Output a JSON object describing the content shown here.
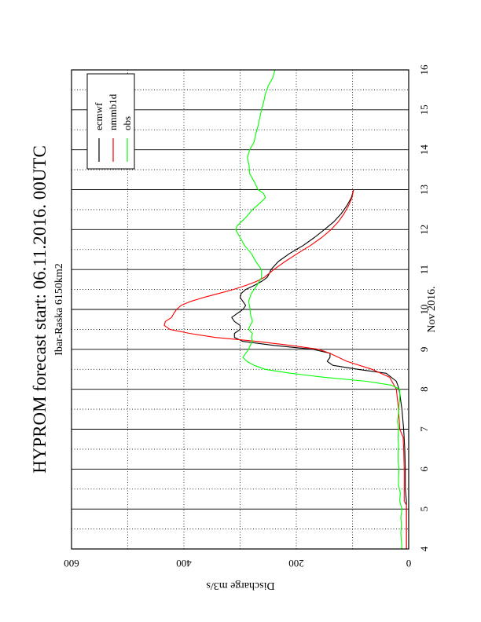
{
  "chart_data": {
    "type": "line",
    "title": "HYPROM forecast start: 06.11.2016. 00UTC",
    "subtitle": "Ibar-Raska 6150km2",
    "xlabel": "Nov 2016.",
    "ylabel": "Discharge m3/s",
    "xlim": [
      4,
      16
    ],
    "ylim": [
      0,
      600
    ],
    "x_ticks": [
      "4",
      "5",
      "6",
      "7",
      "8",
      "9",
      "10",
      "11",
      "12",
      "13",
      "14",
      "15",
      "16"
    ],
    "y_ticks": [
      "0",
      "200",
      "400",
      "600"
    ],
    "grid": true,
    "legend_position": "top-left (rotated figure)",
    "series": [
      {
        "name": "ecmwf",
        "color": "#000000",
        "points": [
          [
            4,
            4
          ],
          [
            5,
            4
          ],
          [
            5.2,
            4
          ],
          [
            5.5,
            6
          ],
          [
            6,
            6
          ],
          [
            6.5,
            7
          ],
          [
            7,
            9
          ],
          [
            7.5,
            12
          ],
          [
            8,
            17
          ],
          [
            8.2,
            22
          ],
          [
            8.4,
            40
          ],
          [
            8.5,
            90
          ],
          [
            8.6,
            135
          ],
          [
            8.7,
            145
          ],
          [
            8.8,
            140
          ],
          [
            8.9,
            140
          ],
          [
            9,
            170
          ],
          [
            9.1,
            240
          ],
          [
            9.2,
            295
          ],
          [
            9.3,
            310
          ],
          [
            9.4,
            310
          ],
          [
            9.5,
            300
          ],
          [
            9.6,
            300
          ],
          [
            9.7,
            310
          ],
          [
            9.8,
            315
          ],
          [
            9.9,
            305
          ],
          [
            10,
            295
          ],
          [
            10.1,
            290
          ],
          [
            10.2,
            295
          ],
          [
            10.3,
            300
          ],
          [
            10.4,
            298
          ],
          [
            10.5,
            290
          ],
          [
            10.6,
            275
          ],
          [
            10.7,
            262
          ],
          [
            10.8,
            252
          ],
          [
            10.9,
            248
          ],
          [
            11,
            245
          ],
          [
            11.2,
            232
          ],
          [
            11.4,
            212
          ],
          [
            11.6,
            188
          ],
          [
            11.8,
            168
          ],
          [
            12,
            150
          ],
          [
            12.2,
            133
          ],
          [
            12.4,
            120
          ],
          [
            12.6,
            110
          ],
          [
            12.8,
            102
          ],
          [
            13,
            98
          ]
        ]
      },
      {
        "name": "nmmb1d",
        "color": "#ff0000",
        "points": [
          [
            4,
            4
          ],
          [
            5,
            4
          ],
          [
            5.1,
            4
          ],
          [
            5.2,
            8
          ],
          [
            5.5,
            8
          ],
          [
            6,
            8
          ],
          [
            6.5,
            9
          ],
          [
            6.8,
            10
          ],
          [
            7,
            16
          ],
          [
            7.5,
            18
          ],
          [
            8,
            22
          ],
          [
            8.3,
            34
          ],
          [
            8.5,
            65
          ],
          [
            8.7,
            110
          ],
          [
            8.8,
            125
          ],
          [
            8.9,
            140
          ],
          [
            9,
            160
          ],
          [
            9.1,
            210
          ],
          [
            9.2,
            270
          ],
          [
            9.3,
            345
          ],
          [
            9.4,
            390
          ],
          [
            9.5,
            425
          ],
          [
            9.6,
            435
          ],
          [
            9.7,
            433
          ],
          [
            9.8,
            422
          ],
          [
            9.9,
            418
          ],
          [
            10,
            413
          ],
          [
            10.1,
            405
          ],
          [
            10.2,
            388
          ],
          [
            10.3,
            365
          ],
          [
            10.4,
            338
          ],
          [
            10.5,
            312
          ],
          [
            10.6,
            290
          ],
          [
            10.7,
            271
          ],
          [
            10.8,
            257
          ],
          [
            11,
            240
          ],
          [
            11.2,
            220
          ],
          [
            11.4,
            198
          ],
          [
            11.6,
            175
          ],
          [
            11.8,
            155
          ],
          [
            12,
            138
          ],
          [
            12.2,
            125
          ],
          [
            12.4,
            115
          ],
          [
            12.6,
            107
          ],
          [
            12.8,
            101
          ],
          [
            13,
            98
          ]
        ]
      },
      {
        "name": "obs",
        "color": "#00ff00",
        "points": [
          [
            4,
            12
          ],
          [
            4.2,
            13
          ],
          [
            4.4,
            14
          ],
          [
            4.6,
            13
          ],
          [
            4.8,
            14
          ],
          [
            5,
            12
          ],
          [
            5.2,
            16
          ],
          [
            5.4,
            15
          ],
          [
            5.6,
            18
          ],
          [
            5.8,
            18
          ],
          [
            6,
            17
          ],
          [
            6.2,
            19
          ],
          [
            6.4,
            19
          ],
          [
            6.6,
            18
          ],
          [
            6.8,
            19
          ],
          [
            7,
            18
          ],
          [
            7.2,
            20
          ],
          [
            7.4,
            18
          ],
          [
            7.6,
            17
          ],
          [
            7.8,
            16
          ],
          [
            8,
            16
          ],
          [
            8.1,
            30
          ],
          [
            8.2,
            75
          ],
          [
            8.3,
            150
          ],
          [
            8.4,
            210
          ],
          [
            8.5,
            255
          ],
          [
            8.6,
            275
          ],
          [
            8.7,
            288
          ],
          [
            8.8,
            295
          ],
          [
            8.9,
            290
          ],
          [
            9,
            285
          ],
          [
            9.1,
            282
          ],
          [
            9.2,
            278
          ],
          [
            9.3,
            280
          ],
          [
            9.4,
            278
          ],
          [
            9.5,
            285
          ],
          [
            9.6,
            282
          ],
          [
            9.7,
            278
          ],
          [
            9.8,
            280
          ],
          [
            9.9,
            282
          ],
          [
            10,
            282
          ],
          [
            10.2,
            285
          ],
          [
            10.4,
            280
          ],
          [
            10.6,
            270
          ],
          [
            10.8,
            262
          ],
          [
            11,
            262
          ],
          [
            11.2,
            272
          ],
          [
            11.4,
            280
          ],
          [
            11.6,
            292
          ],
          [
            11.8,
            300
          ],
          [
            12,
            308
          ],
          [
            12.1,
            305
          ],
          [
            12.3,
            290
          ],
          [
            12.5,
            278
          ],
          [
            12.7,
            262
          ],
          [
            12.8,
            255
          ],
          [
            12.9,
            258
          ],
          [
            13,
            268
          ],
          [
            13.2,
            275
          ],
          [
            13.4,
            283
          ],
          [
            13.6,
            284
          ],
          [
            13.8,
            287
          ],
          [
            13.9,
            285
          ],
          [
            14,
            283
          ],
          [
            14.2,
            275
          ],
          [
            14.4,
            272
          ],
          [
            14.6,
            268
          ],
          [
            14.8,
            265
          ],
          [
            15,
            262
          ],
          [
            15.2,
            258
          ],
          [
            15.4,
            255
          ],
          [
            15.6,
            250
          ],
          [
            15.8,
            242
          ],
          [
            16,
            238
          ]
        ]
      }
    ]
  }
}
